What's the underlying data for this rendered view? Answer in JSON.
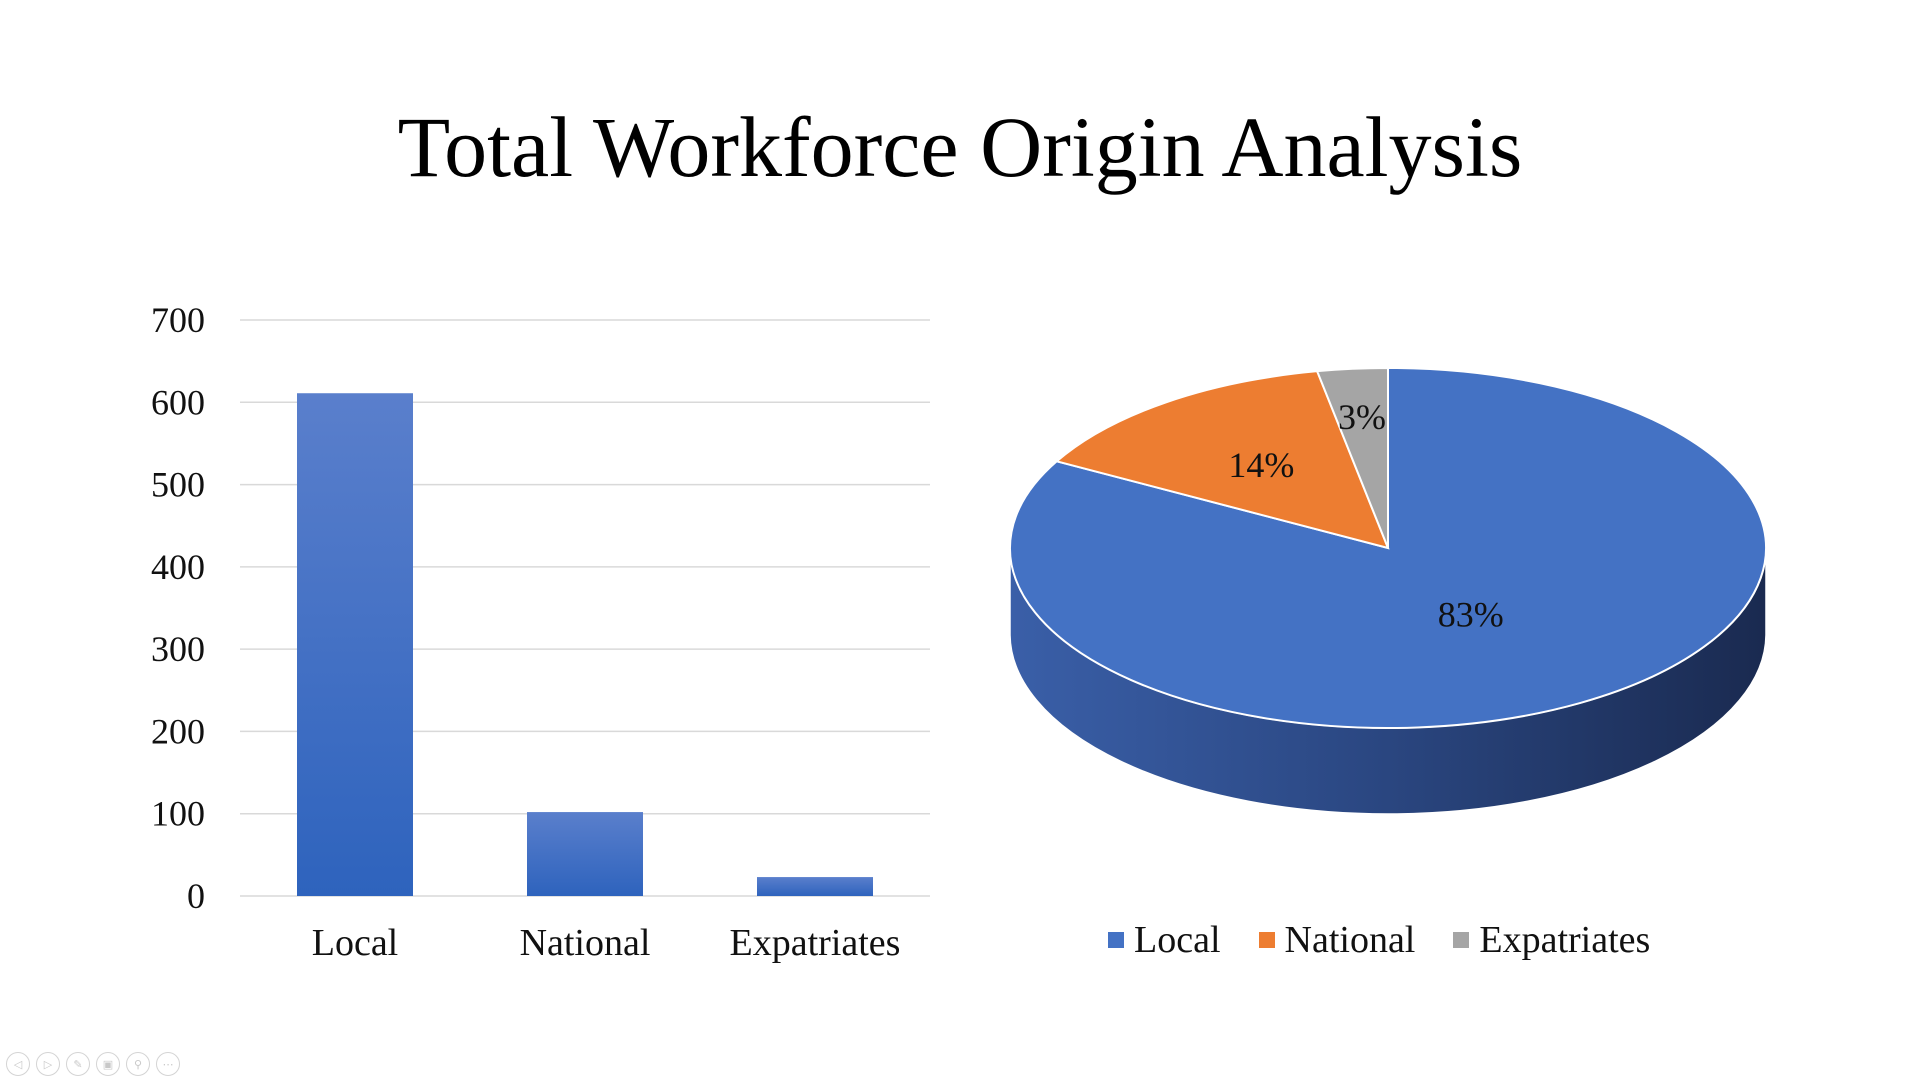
{
  "slide": {
    "title": "Total Workforce Origin Analysis"
  },
  "chart_data": [
    {
      "type": "bar",
      "title": "",
      "xlabel": "",
      "ylabel": "",
      "categories": [
        "Local",
        "National",
        "Expatriates"
      ],
      "values": [
        611,
        102,
        23
      ],
      "ylim": [
        0,
        700
      ],
      "yticks": [
        0,
        100,
        200,
        300,
        400,
        500,
        600,
        700
      ],
      "grid": true,
      "legend": "none",
      "colors": {
        "bar_top": "#5a7fcc",
        "bar_bottom": "#2e63bd",
        "grid": "#d9d9d9"
      }
    },
    {
      "type": "pie",
      "title": "",
      "labels": [
        "Local",
        "National",
        "Expatriates"
      ],
      "values": [
        83,
        14,
        3
      ],
      "data_labels": [
        "83%",
        "14%",
        "3%"
      ],
      "style": "3d",
      "legend": "bottom",
      "colors": {
        "Local": "#4472c4",
        "National": "#ed7d31",
        "Expatriates": "#a5a5a5"
      }
    }
  ],
  "toolbar": {
    "buttons": [
      "previous-icon",
      "next-icon",
      "pen-icon",
      "slides-icon",
      "zoom-icon",
      "more-icon"
    ],
    "glyphs": [
      "◁",
      "▷",
      "✎",
      "▣",
      "⚲",
      "⋯"
    ]
  }
}
